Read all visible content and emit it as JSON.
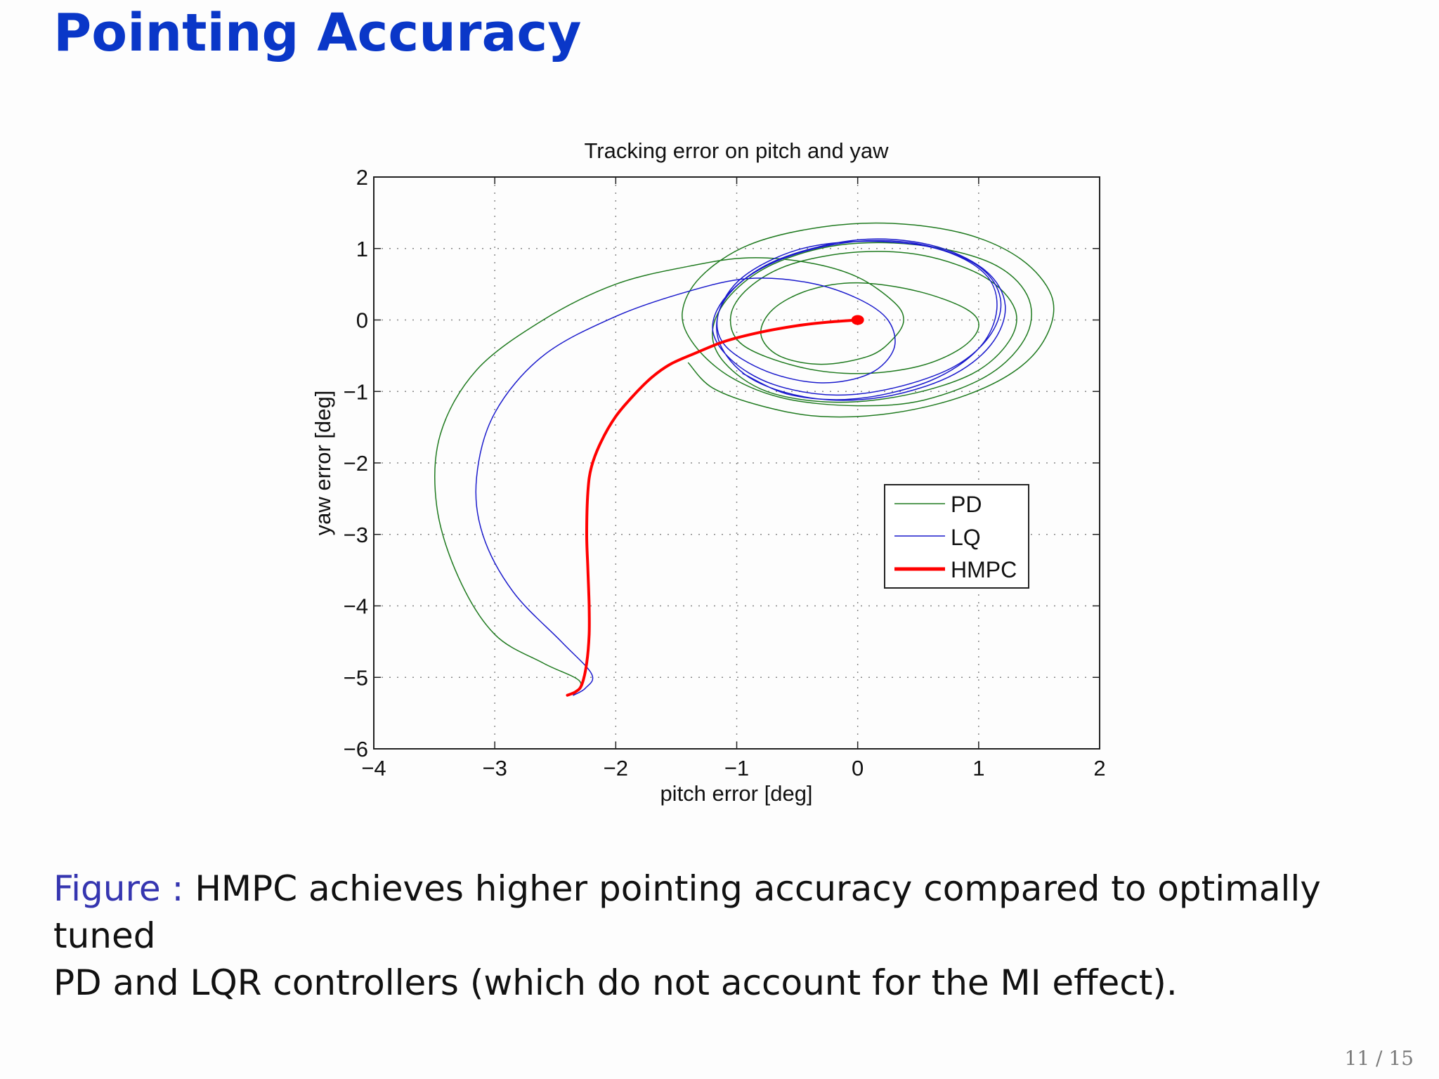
{
  "slide": {
    "title": "Pointing Accuracy",
    "caption_label": "Figure :",
    "caption_text_line1": "HMPC achieves higher pointing accuracy compared to optimally tuned",
    "caption_text_line2": "PD and LQR controllers (which do not account for the MI effect).",
    "page_number": "11 / 15"
  },
  "colors": {
    "title": "#0a37c8",
    "caption_label": "#3535b0",
    "PD": "#1f7a1f",
    "LQ": "#1a1acc",
    "HMPC": "#ff0000"
  },
  "chart_data": {
    "type": "line",
    "title": "Tracking error on pitch and yaw",
    "xlabel": "pitch error [deg]",
    "ylabel": "yaw error [deg]",
    "xlim": [
      -4,
      2
    ],
    "ylim": [
      -6,
      2
    ],
    "xticks": [
      -4,
      -3,
      -2,
      -1,
      0,
      1,
      2
    ],
    "yticks": [
      -6,
      -5,
      -4,
      -3,
      -2,
      -1,
      0,
      1,
      2
    ],
    "xtick_labels": [
      "−4",
      "−3",
      "−2",
      "−1",
      "0",
      "1",
      "2"
    ],
    "ytick_labels": [
      "−6",
      "−5",
      "−4",
      "−3",
      "−2",
      "−1",
      "0",
      "1",
      "2"
    ],
    "grid": true,
    "legend_position": "inside lower right",
    "series": [
      {
        "name": "PD",
        "color": "#1f7a1f",
        "linewidth": 1.5,
        "points": [
          [
            -2.35,
            -5.25
          ],
          [
            -2.3,
            -5.05
          ],
          [
            -2.6,
            -4.8
          ],
          [
            -3.0,
            -4.4
          ],
          [
            -3.3,
            -3.6
          ],
          [
            -3.48,
            -2.6
          ],
          [
            -3.45,
            -1.6
          ],
          [
            -3.15,
            -0.7
          ],
          [
            -2.6,
            0.0
          ],
          [
            -2.0,
            0.5
          ],
          [
            -1.4,
            0.75
          ],
          [
            -0.9,
            0.87
          ],
          [
            -0.4,
            0.8
          ],
          [
            0.0,
            0.6
          ],
          [
            0.3,
            0.25
          ],
          [
            0.38,
            0.0
          ],
          [
            0.3,
            -0.25
          ],
          [
            0.1,
            -0.5
          ],
          [
            -0.3,
            -0.62
          ],
          [
            -0.65,
            -0.5
          ],
          [
            -0.8,
            -0.2
          ],
          [
            -0.7,
            0.15
          ],
          [
            -0.4,
            0.42
          ],
          [
            0.0,
            0.52
          ],
          [
            0.5,
            0.4
          ],
          [
            0.9,
            0.15
          ],
          [
            1.0,
            -0.1
          ],
          [
            0.85,
            -0.4
          ],
          [
            0.5,
            -0.65
          ],
          [
            0.0,
            -0.75
          ],
          [
            -0.5,
            -0.65
          ],
          [
            -0.95,
            -0.35
          ],
          [
            -1.05,
            0.05
          ],
          [
            -0.9,
            0.45
          ],
          [
            -0.55,
            0.78
          ],
          [
            0.0,
            0.95
          ],
          [
            0.55,
            0.9
          ],
          [
            1.05,
            0.6
          ],
          [
            1.3,
            0.15
          ],
          [
            1.25,
            -0.3
          ],
          [
            0.95,
            -0.75
          ],
          [
            0.4,
            -1.05
          ],
          [
            -0.2,
            -1.15
          ],
          [
            -0.75,
            -1.0
          ],
          [
            -1.1,
            -0.6
          ],
          [
            -1.2,
            -0.15
          ],
          [
            -1.05,
            0.35
          ],
          [
            -0.7,
            0.78
          ],
          [
            -0.15,
            1.05
          ],
          [
            0.5,
            1.05
          ],
          [
            1.1,
            0.8
          ],
          [
            1.4,
            0.35
          ],
          [
            1.4,
            -0.2
          ],
          [
            1.1,
            -0.75
          ],
          [
            0.55,
            -1.12
          ],
          [
            0.0,
            -1.2
          ],
          [
            -0.6,
            -1.1
          ],
          [
            -1.05,
            -0.8
          ],
          [
            -1.35,
            -0.35
          ],
          [
            -1.45,
            0.1
          ],
          [
            -1.3,
            0.6
          ],
          [
            -0.9,
            1.05
          ],
          [
            -0.3,
            1.3
          ],
          [
            0.3,
            1.35
          ],
          [
            0.9,
            1.2
          ],
          [
            1.35,
            0.85
          ],
          [
            1.6,
            0.35
          ],
          [
            1.58,
            -0.15
          ],
          [
            1.35,
            -0.65
          ],
          [
            0.9,
            -1.05
          ],
          [
            0.3,
            -1.3
          ],
          [
            -0.3,
            -1.35
          ],
          [
            -0.8,
            -1.2
          ],
          [
            -1.2,
            -0.95
          ],
          [
            -1.4,
            -0.6
          ]
        ]
      },
      {
        "name": "LQ",
        "color": "#1a1acc",
        "linewidth": 1.5,
        "points": [
          [
            -2.35,
            -5.25
          ],
          [
            -2.25,
            -5.15
          ],
          [
            -2.2,
            -4.95
          ],
          [
            -2.45,
            -4.5
          ],
          [
            -2.85,
            -3.8
          ],
          [
            -3.1,
            -3.0
          ],
          [
            -3.15,
            -2.2
          ],
          [
            -3.0,
            -1.3
          ],
          [
            -2.6,
            -0.5
          ],
          [
            -2.0,
            0.05
          ],
          [
            -1.4,
            0.4
          ],
          [
            -0.9,
            0.58
          ],
          [
            -0.4,
            0.52
          ],
          [
            0.0,
            0.3
          ],
          [
            0.25,
            0.0
          ],
          [
            0.3,
            -0.4
          ],
          [
            0.1,
            -0.75
          ],
          [
            -0.3,
            -0.88
          ],
          [
            -0.75,
            -0.72
          ],
          [
            -1.1,
            -0.35
          ],
          [
            -1.15,
            0.1
          ],
          [
            -0.95,
            0.55
          ],
          [
            -0.55,
            0.9
          ],
          [
            0.0,
            1.1
          ],
          [
            0.55,
            1.05
          ],
          [
            1.0,
            0.75
          ],
          [
            1.18,
            0.3
          ],
          [
            1.1,
            -0.2
          ],
          [
            0.8,
            -0.65
          ],
          [
            0.3,
            -0.95
          ],
          [
            -0.2,
            -1.05
          ],
          [
            -0.7,
            -0.9
          ],
          [
            -1.05,
            -0.55
          ],
          [
            -1.2,
            -0.1
          ],
          [
            -1.05,
            0.4
          ],
          [
            -0.65,
            0.85
          ],
          [
            0.0,
            1.12
          ],
          [
            0.6,
            1.05
          ],
          [
            1.05,
            0.7
          ],
          [
            1.22,
            0.2
          ],
          [
            1.1,
            -0.35
          ],
          [
            0.75,
            -0.8
          ],
          [
            0.2,
            -1.08
          ],
          [
            -0.35,
            -1.1
          ],
          [
            -0.85,
            -0.85
          ],
          [
            -1.12,
            -0.4
          ],
          [
            -1.15,
            0.1
          ],
          [
            -0.95,
            0.6
          ],
          [
            -0.5,
            0.98
          ],
          [
            0.05,
            1.1
          ],
          [
            0.65,
            1.0
          ],
          [
            1.05,
            0.65
          ],
          [
            1.15,
            0.15
          ],
          [
            1.0,
            -0.4
          ],
          [
            0.6,
            -0.85
          ],
          [
            0.0,
            -1.1
          ],
          [
            -0.55,
            -1.05
          ],
          [
            -0.95,
            -0.75
          ]
        ]
      },
      {
        "name": "HMPC",
        "color": "#ff0000",
        "linewidth": 4,
        "points": [
          [
            -2.4,
            -5.25
          ],
          [
            -2.33,
            -5.2
          ],
          [
            -2.28,
            -5.1
          ],
          [
            -2.24,
            -4.8
          ],
          [
            -2.22,
            -4.4
          ],
          [
            -2.22,
            -4.0
          ],
          [
            -2.23,
            -3.5
          ],
          [
            -2.24,
            -3.0
          ],
          [
            -2.23,
            -2.4
          ],
          [
            -2.2,
            -2.05
          ],
          [
            -2.12,
            -1.7
          ],
          [
            -2.0,
            -1.35
          ],
          [
            -1.85,
            -1.05
          ],
          [
            -1.7,
            -0.8
          ],
          [
            -1.55,
            -0.62
          ],
          [
            -1.35,
            -0.47
          ],
          [
            -1.1,
            -0.3
          ],
          [
            -0.8,
            -0.17
          ],
          [
            -0.5,
            -0.08
          ],
          [
            -0.25,
            -0.03
          ],
          [
            0.0,
            0.0
          ]
        ],
        "end_marker": [
          0.0,
          0.0
        ]
      }
    ]
  }
}
